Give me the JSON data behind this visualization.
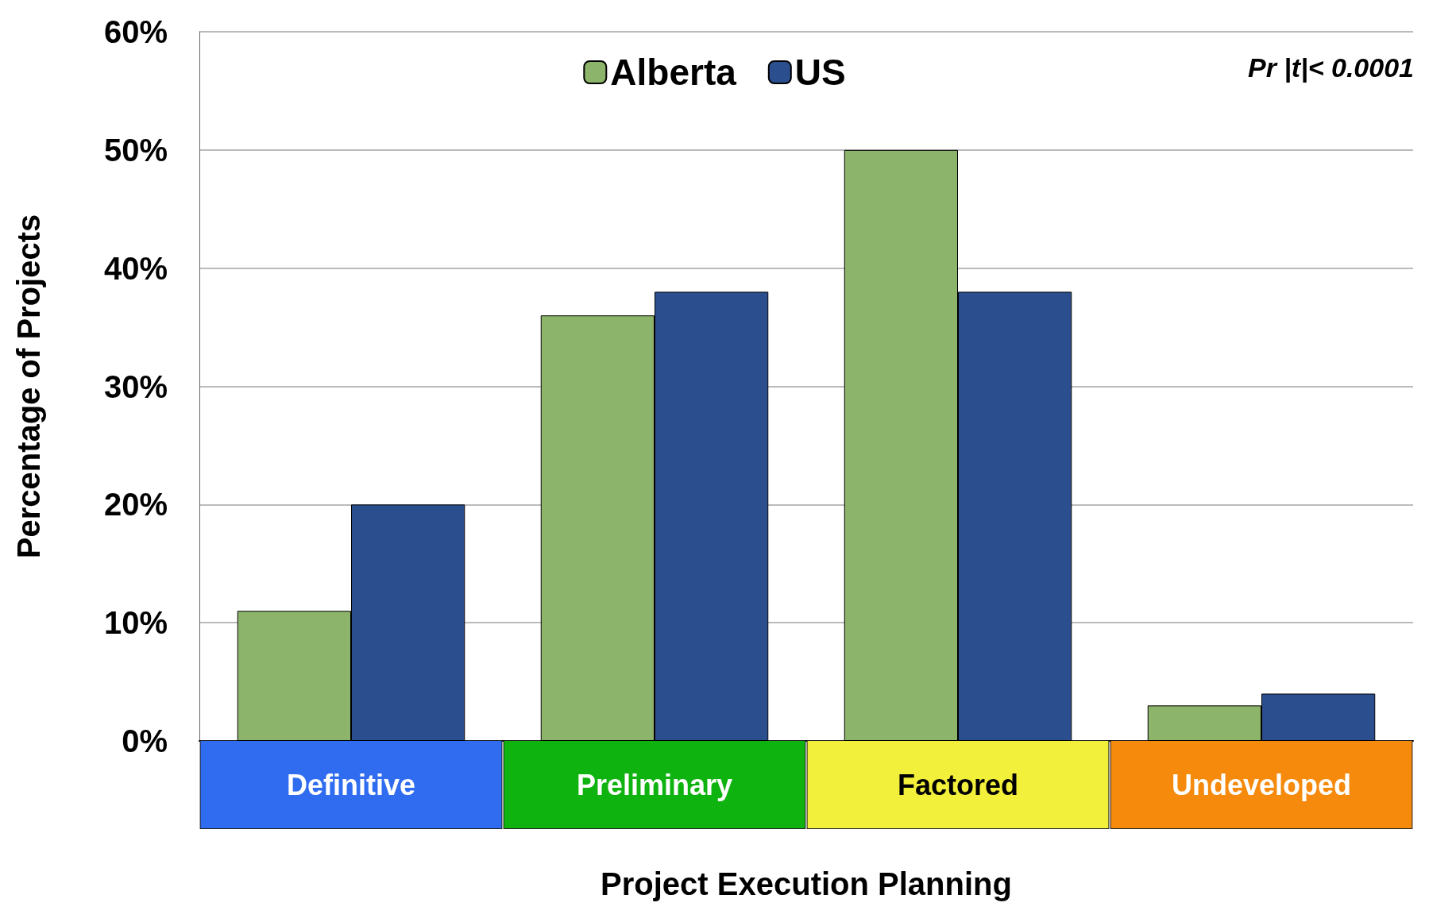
{
  "chart_data": {
    "type": "bar",
    "xlabel": "Project Execution Planning",
    "ylabel": "Percentage of Projects",
    "categories": [
      "Definitive",
      "Preliminary",
      "Factored",
      "Undeveloped"
    ],
    "series": [
      {
        "name": "Alberta",
        "color": "#8cb46a",
        "values": [
          11,
          36,
          50,
          3
        ]
      },
      {
        "name": "US",
        "color": "#2b4f8e",
        "values": [
          20,
          38,
          38,
          4
        ]
      }
    ],
    "ylim": [
      0,
      60
    ],
    "yticks": [
      {
        "value": 0,
        "label": "0%"
      },
      {
        "value": 10,
        "label": "10%"
      },
      {
        "value": 20,
        "label": "20%"
      },
      {
        "value": 30,
        "label": "30%"
      },
      {
        "value": 40,
        "label": "40%"
      },
      {
        "value": 50,
        "label": "50%"
      },
      {
        "value": 60,
        "label": "60%"
      }
    ],
    "grid": "y",
    "legend": "top",
    "annotations": [
      "Pr |t|< 0.0001"
    ]
  }
}
